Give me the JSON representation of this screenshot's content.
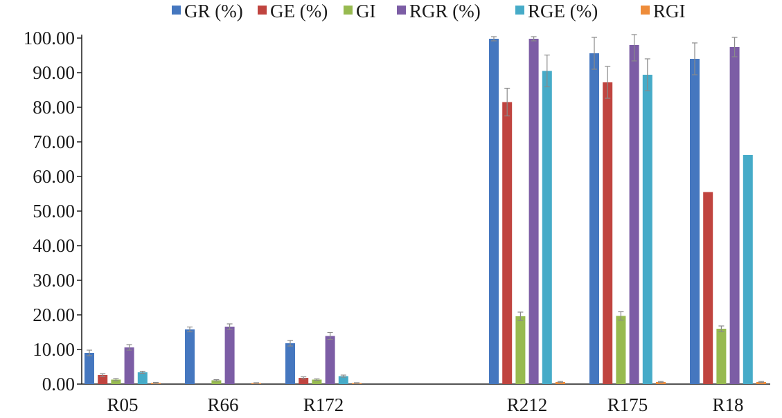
{
  "chart_data": {
    "type": "bar",
    "categories": [
      "R05",
      "R66",
      "R172",
      "R212",
      "R175",
      "R18"
    ],
    "ylim": [
      0,
      100
    ],
    "yticks": [
      "0.00",
      "10.00",
      "20.00",
      "30.00",
      "40.00",
      "50.00",
      "60.00",
      "70.00",
      "80.00",
      "90.00",
      "100.00"
    ],
    "grid": false,
    "legend_position": "top",
    "series": [
      {
        "name": "GR (%)",
        "color": "#4577bf",
        "values": [
          9.0,
          15.8,
          11.8,
          99.8,
          95.6,
          94.0
        ],
        "errors": [
          0.8,
          0.7,
          0.8,
          0.6,
          4.6,
          4.6
        ]
      },
      {
        "name": "GE (%)",
        "color": "#c0443f",
        "values": [
          2.6,
          0.0,
          1.8,
          81.5,
          87.2,
          55.5
        ],
        "errors": [
          0.4,
          0.0,
          0.3,
          4.0,
          4.6,
          0.0
        ]
      },
      {
        "name": "GI",
        "color": "#97ba50",
        "values": [
          1.3,
          1.1,
          1.3,
          19.6,
          19.7,
          16.0
        ],
        "errors": [
          0.3,
          0.2,
          0.2,
          1.2,
          1.2,
          0.8
        ]
      },
      {
        "name": "RGR (%)",
        "color": "#7c5da5",
        "values": [
          10.6,
          16.6,
          13.9,
          99.8,
          98.0,
          97.4
        ],
        "errors": [
          0.8,
          0.8,
          1.0,
          0.6,
          4.6,
          2.8
        ]
      },
      {
        "name": "RGE (%)",
        "color": "#46abc8",
        "values": [
          3.4,
          0.0,
          2.3,
          90.5,
          89.4,
          66.2
        ],
        "errors": [
          0.3,
          0.0,
          0.3,
          4.6,
          4.6,
          0.0
        ]
      },
      {
        "name": "RGI",
        "color": "#ee8c3a",
        "values": [
          0.35,
          0.3,
          0.3,
          0.6,
          0.6,
          0.6
        ],
        "errors": [
          0.15,
          0.1,
          0.1,
          0.15,
          0.15,
          0.15
        ]
      }
    ]
  }
}
